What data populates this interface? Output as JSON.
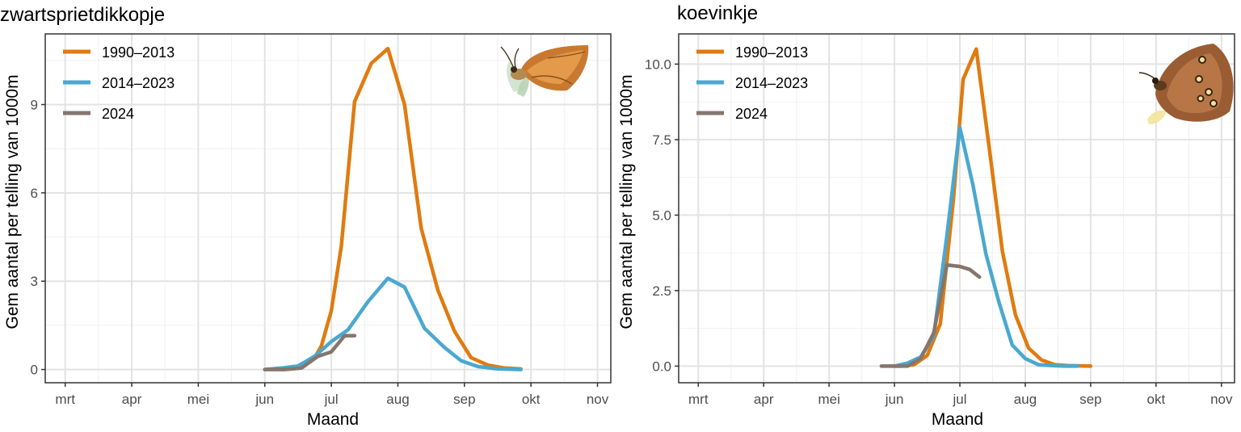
{
  "chart_data": [
    {
      "type": "line",
      "title": "zwartsprietdikkopje",
      "xlabel": "Maand",
      "ylabel": "Gem aantal per telling van 1000m",
      "xlim": [
        2.7,
        11.2
      ],
      "ylim": [
        -0.45,
        11.4
      ],
      "x_ticks": [
        3,
        4,
        5,
        6,
        7,
        8,
        9,
        10,
        11
      ],
      "x_tick_labels": [
        "mrt",
        "apr",
        "mei",
        "jun",
        "jul",
        "aug",
        "sep",
        "okt",
        "nov"
      ],
      "y_ticks": [
        0,
        3,
        6,
        9
      ],
      "y_tick_labels": [
        "0",
        "3",
        "6",
        "9"
      ],
      "legend": "top-left",
      "grid": true,
      "series": [
        {
          "name": "1990–2013",
          "color": "#e07b10",
          "x": [
            6.0,
            6.25,
            6.5,
            6.75,
            6.85,
            7.0,
            7.15,
            7.35,
            7.6,
            7.85,
            8.1,
            8.35,
            8.6,
            8.85,
            9.1,
            9.35,
            9.6,
            9.85
          ],
          "y": [
            0,
            0.02,
            0.1,
            0.4,
            0.8,
            2.0,
            4.2,
            9.1,
            10.4,
            10.9,
            9.0,
            4.8,
            2.7,
            1.3,
            0.4,
            0.15,
            0.05,
            0.02
          ]
        },
        {
          "name": "2014–2023",
          "color": "#4aa8d0",
          "x": [
            6.0,
            6.25,
            6.5,
            6.75,
            7.0,
            7.25,
            7.55,
            7.85,
            8.1,
            8.4,
            8.7,
            8.95,
            9.2,
            9.5,
            9.85
          ],
          "y": [
            0,
            0.05,
            0.12,
            0.45,
            0.95,
            1.35,
            2.3,
            3.1,
            2.8,
            1.4,
            0.75,
            0.3,
            0.1,
            0.02,
            0
          ]
        },
        {
          "name": "2024",
          "color": "#85766d",
          "x": [
            6.0,
            6.3,
            6.55,
            6.8,
            7.0,
            7.2,
            7.35
          ],
          "y": [
            0,
            0,
            0.05,
            0.45,
            0.6,
            1.15,
            1.15
          ]
        }
      ]
    },
    {
      "type": "line",
      "title": "koevinkje",
      "xlabel": "Maand",
      "ylabel": "Gem aantal per telling van 1000m",
      "xlim": [
        2.7,
        11.2
      ],
      "ylim": [
        -0.55,
        11.0
      ],
      "x_ticks": [
        3,
        4,
        5,
        6,
        7,
        8,
        9,
        10,
        11
      ],
      "x_tick_labels": [
        "mrt",
        "apr",
        "mei",
        "jun",
        "jul",
        "aug",
        "sep",
        "okt",
        "nov"
      ],
      "y_ticks": [
        0,
        2.5,
        5,
        7.5,
        10
      ],
      "y_tick_labels": [
        "0.0",
        "2.5",
        "5.0",
        "7.5",
        "10.0"
      ],
      "legend": "top-left",
      "grid": true,
      "series": [
        {
          "name": "1990–2013",
          "color": "#e07b10",
          "x": [
            5.95,
            6.1,
            6.3,
            6.5,
            6.7,
            6.9,
            7.05,
            7.25,
            7.45,
            7.65,
            7.85,
            8.05,
            8.25,
            8.45,
            8.65,
            8.85,
            9.0
          ],
          "y": [
            0,
            0,
            0.05,
            0.35,
            1.4,
            5.5,
            9.5,
            10.5,
            7.2,
            3.8,
            1.7,
            0.6,
            0.2,
            0.05,
            0.02,
            0.01,
            0
          ]
        },
        {
          "name": "2014–2023",
          "color": "#4aa8d0",
          "x": [
            6.0,
            6.2,
            6.4,
            6.6,
            6.8,
            7.0,
            7.2,
            7.4,
            7.6,
            7.8,
            8.0,
            8.2,
            8.4,
            8.6,
            8.8
          ],
          "y": [
            0,
            0.1,
            0.3,
            1.0,
            4.3,
            7.9,
            6.0,
            3.7,
            2.1,
            0.7,
            0.25,
            0.05,
            0.02,
            0,
            0
          ]
        },
        {
          "name": "2024",
          "color": "#85766d",
          "x": [
            5.8,
            6.0,
            6.2,
            6.4,
            6.6,
            6.8,
            7.0,
            7.15,
            7.3
          ],
          "y": [
            0,
            0,
            0,
            0.25,
            1.1,
            3.35,
            3.3,
            3.2,
            2.95
          ]
        }
      ]
    }
  ]
}
